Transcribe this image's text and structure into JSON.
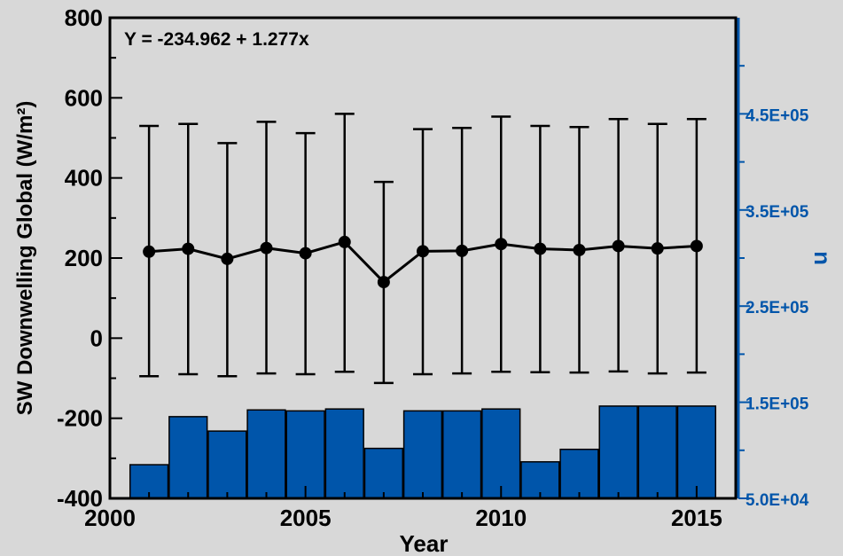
{
  "chart_data": {
    "type": "bar+line",
    "xlabel": "Year",
    "ylabel_left": "SW Downwelling Global (W/m²)",
    "ylabel_right": "n",
    "annotation": "Y = -234.962 + 1.277x",
    "xlim": [
      2000,
      2016
    ],
    "ylim_left": [
      -400,
      800
    ],
    "ylim_right": [
      50000,
      550000
    ],
    "x_ticks": [
      "2000",
      "2005",
      "2010",
      "2015"
    ],
    "y_ticks_left": [
      "-400",
      "-200",
      "0",
      "200",
      "400",
      "600",
      "800"
    ],
    "y_ticks_right": [
      "5.0E+04",
      "1.5E+05",
      "2.5E+05",
      "3.5E+05",
      "4.5E+05"
    ],
    "grid": false,
    "colors": {
      "bars": "#0055aa",
      "bar_edge": "#000000",
      "right_axis": "#0055aa",
      "trend": "#cc0000",
      "series": "#000000",
      "background": "#d8d8d8"
    },
    "bars": {
      "name": "n",
      "x": [
        2001,
        2002,
        2003,
        2004,
        2005,
        2006,
        2007,
        2008,
        2009,
        2010,
        2011,
        2012,
        2013,
        2014,
        2015
      ],
      "values": [
        85000,
        135000,
        120000,
        142000,
        141000,
        143000,
        102000,
        141000,
        141000,
        143000,
        88000,
        101000,
        146000,
        146000,
        146000
      ]
    },
    "series": {
      "name": "SW Downwelling Global",
      "x": [
        2001,
        2002,
        2003,
        2004,
        2005,
        2006,
        2007,
        2008,
        2009,
        2010,
        2011,
        2012,
        2013,
        2014,
        2015
      ],
      "mean": [
        216,
        223,
        198,
        225,
        212,
        240,
        140,
        217,
        218,
        235,
        223,
        220,
        230,
        224,
        230
      ],
      "upper": [
        530,
        535,
        487,
        540,
        512,
        560,
        390,
        522,
        525,
        553,
        530,
        527,
        547,
        535,
        547
      ],
      "lower": [
        -95,
        -90,
        -95,
        -88,
        -90,
        -84,
        -112,
        -90,
        -88,
        -84,
        -85,
        -86,
        -83,
        -88,
        -86
      ]
    },
    "trend": {
      "intercept": -234.962,
      "slope": 1.277,
      "x_offset": 0,
      "x_range": [
        2000,
        2016
      ]
    }
  }
}
